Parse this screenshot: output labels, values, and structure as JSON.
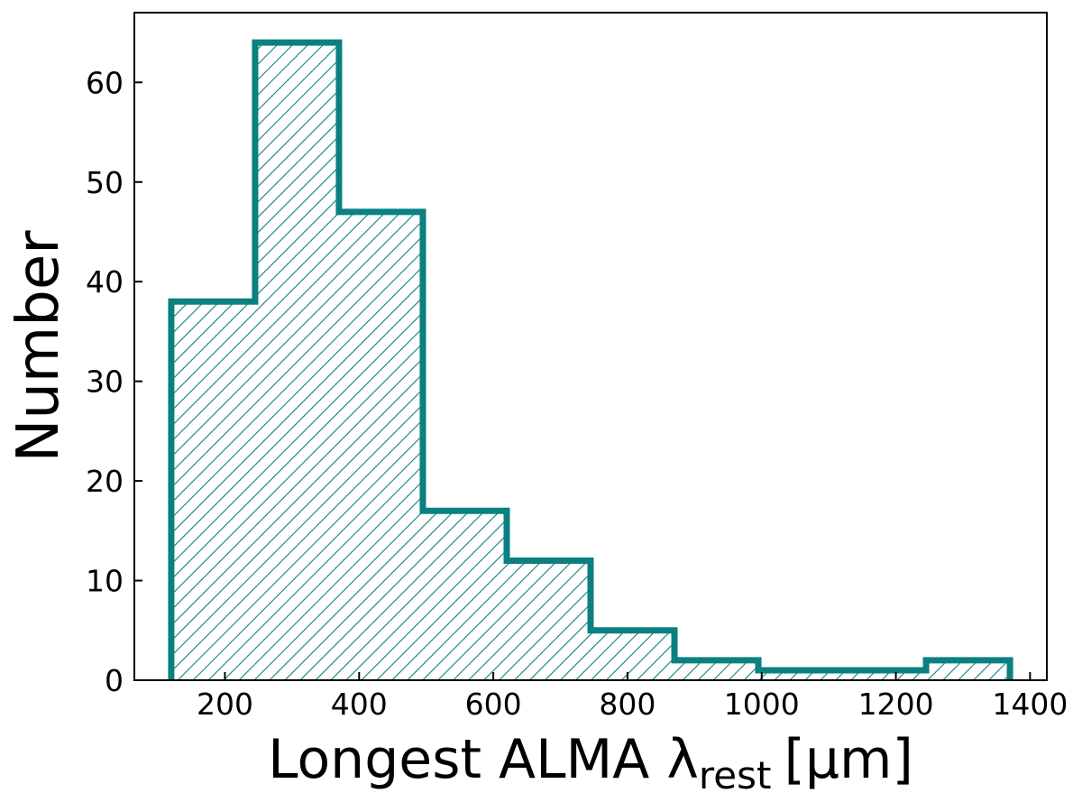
{
  "chart_data": {
    "type": "bar",
    "title": "",
    "xlabel": "Longest ALMA λ",
    "xlabel_subscript": "rest",
    "xlabel_unit": "[μm]",
    "ylabel": "Number",
    "xlim": [
      65,
      1425
    ],
    "ylim": [
      0,
      67
    ],
    "x_ticks": [
      200,
      400,
      600,
      800,
      1000,
      1200,
      1400
    ],
    "y_ticks": [
      0,
      10,
      20,
      30,
      40,
      50,
      60
    ],
    "grid": false,
    "bin_edges": [
      120,
      245,
      370,
      495,
      620,
      745,
      870,
      995,
      1120,
      1245,
      1370
    ],
    "values": [
      38,
      64,
      47,
      17,
      12,
      5,
      2,
      1,
      1,
      2
    ],
    "color": "#0b8080",
    "hatch": "diagonal"
  }
}
